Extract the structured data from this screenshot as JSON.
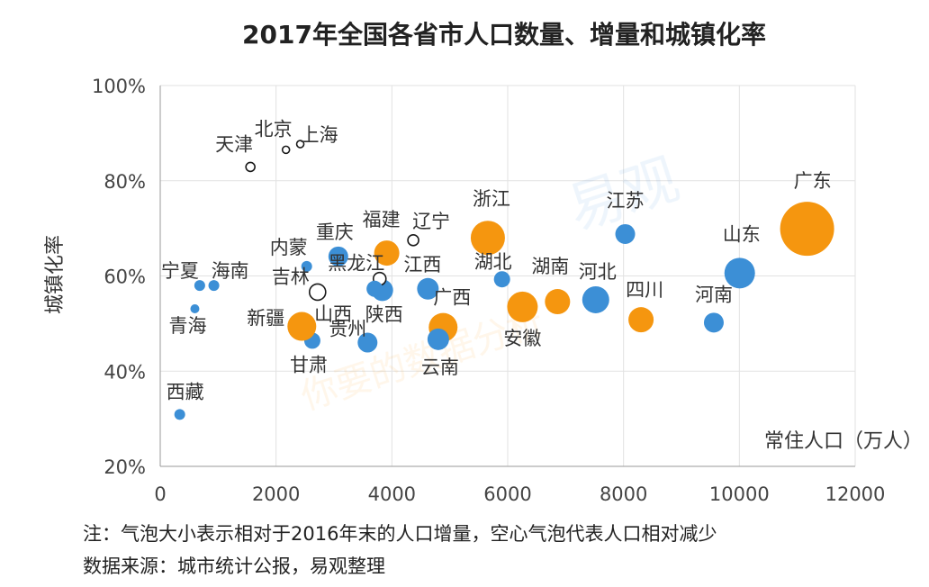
{
  "chart_data": {
    "type": "scatter",
    "title": "2017年全国各省市人口数量、增量和城镇化率",
    "xlabel": "常住人口（万人）",
    "ylabel": "城镇化率",
    "xlim": [
      0,
      12000
    ],
    "ylim": [
      20,
      100
    ],
    "x_ticks": [
      "0",
      "2000",
      "4000",
      "6000",
      "8000",
      "10000",
      "12000"
    ],
    "y_ticks": [
      "20%",
      "40%",
      "60%",
      "80%",
      "100%"
    ],
    "grid": true,
    "bubble_encoding": "size = population increase vs end of 2016; hollow = decrease",
    "colors": {
      "orange": "#f5960f",
      "blue": "#3c8fd6",
      "hollow": "#1a1a1a"
    },
    "points": [
      {
        "name": "广东",
        "x": 11170,
        "y": 69.9,
        "size": 30,
        "color": "orange"
      },
      {
        "name": "山东",
        "x": 10006,
        "y": 60.6,
        "size": 17,
        "color": "blue"
      },
      {
        "name": "河南",
        "x": 9559,
        "y": 50.2,
        "size": 11,
        "color": "blue"
      },
      {
        "name": "四川",
        "x": 8302,
        "y": 50.8,
        "size": 14,
        "color": "orange"
      },
      {
        "name": "江苏",
        "x": 8029,
        "y": 68.8,
        "size": 11,
        "color": "blue"
      },
      {
        "name": "河北",
        "x": 7520,
        "y": 55.0,
        "size": 15,
        "color": "blue"
      },
      {
        "name": "湖南",
        "x": 6860,
        "y": 54.6,
        "size": 14,
        "color": "orange"
      },
      {
        "name": "安徽",
        "x": 6255,
        "y": 53.5,
        "size": 17,
        "color": "orange"
      },
      {
        "name": "湖北",
        "x": 5902,
        "y": 59.3,
        "size": 9,
        "color": "blue"
      },
      {
        "name": "浙江",
        "x": 5657,
        "y": 68.0,
        "size": 19,
        "color": "orange"
      },
      {
        "name": "广西",
        "x": 4885,
        "y": 49.2,
        "size": 16,
        "color": "orange"
      },
      {
        "name": "云南",
        "x": 4801,
        "y": 46.7,
        "size": 12,
        "color": "blue"
      },
      {
        "name": "江西",
        "x": 4622,
        "y": 57.3,
        "size": 12,
        "color": "blue"
      },
      {
        "name": "辽宁",
        "x": 4369,
        "y": 67.5,
        "size": 6,
        "color": "hollow"
      },
      {
        "name": "福建",
        "x": 3911,
        "y": 64.8,
        "size": 14,
        "color": "orange"
      },
      {
        "name": "陕西",
        "x": 3835,
        "y": 57.0,
        "size": 12,
        "color": "blue"
      },
      {
        "name": "黑龙江",
        "x": 3789,
        "y": 59.4,
        "size": 7,
        "color": "hollow"
      },
      {
        "name": "贵州",
        "x": 3580,
        "y": 46.0,
        "size": 11,
        "color": "blue"
      },
      {
        "name": "重庆",
        "x": 3075,
        "y": 64.1,
        "size": 11,
        "color": "blue"
      },
      {
        "name": "吉林",
        "x": 2717,
        "y": 56.6,
        "size": 9,
        "color": "hollow"
      },
      {
        "name": "山西",
        "x": 3702,
        "y": 57.3,
        "size": 9,
        "color": "blue"
      },
      {
        "name": "甘肃",
        "x": 2626,
        "y": 46.4,
        "size": 9,
        "color": "blue"
      },
      {
        "name": "内蒙",
        "x": 2529,
        "y": 62.0,
        "size": 6,
        "color": "blue"
      },
      {
        "name": "新疆",
        "x": 2445,
        "y": 49.4,
        "size": 16,
        "color": "orange"
      },
      {
        "name": "上海",
        "x": 2418,
        "y": 87.7,
        "size": 4,
        "color": "hollow"
      },
      {
        "name": "北京",
        "x": 2171,
        "y": 86.5,
        "size": 4,
        "color": "hollow"
      },
      {
        "name": "天津",
        "x": 1557,
        "y": 82.9,
        "size": 5,
        "color": "hollow"
      },
      {
        "name": "海南",
        "x": 926,
        "y": 58.0,
        "size": 6,
        "color": "blue"
      },
      {
        "name": "宁夏",
        "x": 682,
        "y": 58.0,
        "size": 6,
        "color": "blue"
      },
      {
        "name": "青海",
        "x": 598,
        "y": 53.1,
        "size": 5,
        "color": "blue"
      },
      {
        "name": "西藏",
        "x": 337,
        "y": 30.9,
        "size": 6,
        "color": "blue"
      }
    ]
  },
  "notes": {
    "line1": "注：气泡大小表示相对于2016年末的人口增量，空心气泡代表人口相对减少",
    "line2": "数据来源：城市统计公报，易观整理"
  },
  "watermark": {
    "line1": "易观",
    "line2": "你要的数据分析"
  }
}
